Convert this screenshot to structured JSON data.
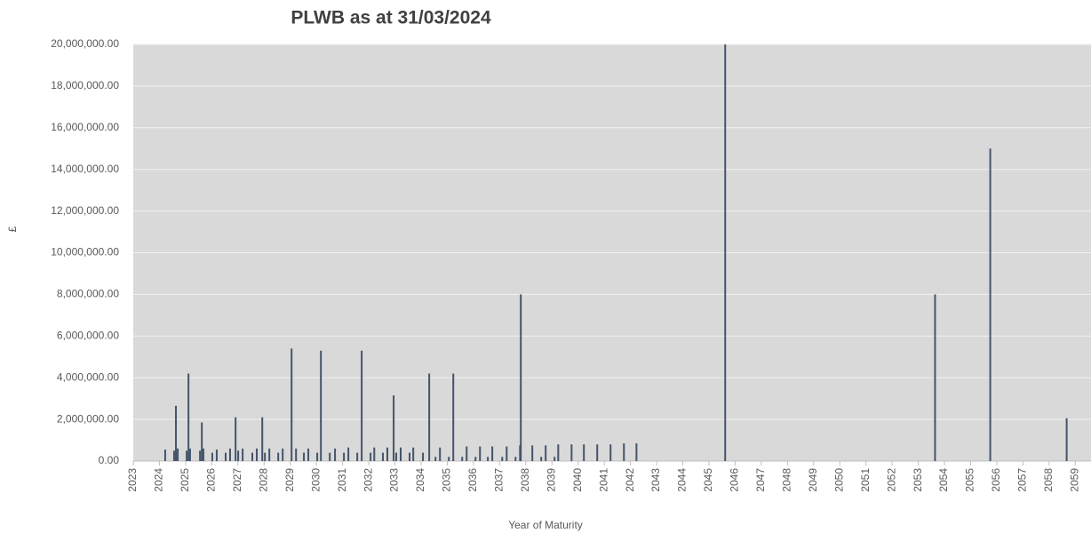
{
  "chart_data": {
    "type": "bar",
    "title": "PLWB as at 31/03/2024",
    "x_label": "Year of Maturity",
    "y_label": "£",
    "color": "#44546a",
    "background": "#d9d9d9",
    "grid": true,
    "x": [
      2024.22,
      2024.56,
      2024.63,
      2024.7,
      2025.04,
      2025.11,
      2025.17,
      2025.55,
      2025.62,
      2025.68,
      2026.02,
      2026.19,
      2026.53,
      2026.7,
      2026.91,
      2027.01,
      2027.18,
      2027.55,
      2027.72,
      2027.93,
      2028.03,
      2028.2,
      2028.54,
      2028.71,
      2029.05,
      2029.22,
      2029.52,
      2029.69,
      2030.03,
      2030.17,
      2030.51,
      2030.71,
      2031.05,
      2031.22,
      2031.56,
      2031.73,
      2032.07,
      2032.21,
      2032.54,
      2032.71,
      2032.95,
      2033.05,
      2033.22,
      2033.56,
      2033.7,
      2034.07,
      2034.31,
      2034.55,
      2034.72,
      2035.06,
      2035.23,
      2035.57,
      2035.74,
      2036.08,
      2036.25,
      2036.55,
      2036.72,
      2037.1,
      2037.27,
      2037.61,
      2037.78,
      2037.81,
      2038.25,
      2038.59,
      2038.76,
      2039.1,
      2039.24,
      2039.75,
      2040.22,
      2040.73,
      2041.24,
      2041.75,
      2042.23,
      2045.62,
      2053.64,
      2055.75,
      2058.67
    ],
    "values": [
      550000,
      500000,
      2650000,
      600000,
      500000,
      4200000,
      600000,
      500000,
      1850000,
      600000,
      400000,
      550000,
      400000,
      600000,
      2100000,
      500000,
      600000,
      400000,
      600000,
      2100000,
      400000,
      600000,
      400000,
      600000,
      5400000,
      600000,
      400000,
      600000,
      400000,
      5300000,
      400000,
      600000,
      400000,
      650000,
      400000,
      5300000,
      400000,
      650000,
      400000,
      650000,
      3150000,
      400000,
      650000,
      400000,
      650000,
      400000,
      4200000,
      200000,
      650000,
      200000,
      4200000,
      200000,
      700000,
      200000,
      700000,
      200000,
      700000,
      200000,
      700000,
      200000,
      750000,
      8000000,
      750000,
      200000,
      750000,
      200000,
      800000,
      800000,
      800000,
      800000,
      800000,
      850000,
      850000,
      20000000,
      8000000,
      15000000,
      2050000
    ],
    "xlim": [
      2023,
      2059.6
    ],
    "xticks": [
      2023,
      2024,
      2025,
      2026,
      2027,
      2028,
      2029,
      2030,
      2031,
      2032,
      2033,
      2034,
      2035,
      2036,
      2037,
      2038,
      2039,
      2040,
      2041,
      2042,
      2043,
      2044,
      2045,
      2046,
      2047,
      2048,
      2049,
      2050,
      2051,
      2052,
      2053,
      2054,
      2055,
      2056,
      2057,
      2058,
      2059
    ],
    "ylim": [
      0,
      20000000
    ],
    "yticks": [
      {
        "value": 0,
        "label": "0.00"
      },
      {
        "value": 2000000,
        "label": "2,000,000.00"
      },
      {
        "value": 4000000,
        "label": "4,000,000.00"
      },
      {
        "value": 6000000,
        "label": "6,000,000.00"
      },
      {
        "value": 8000000,
        "label": "8,000,000.00"
      },
      {
        "value": 10000000,
        "label": "10,000,000.00"
      },
      {
        "value": 12000000,
        "label": "12,000,000.00"
      },
      {
        "value": 14000000,
        "label": "14,000,000.00"
      },
      {
        "value": 16000000,
        "label": "16,000,000.00"
      },
      {
        "value": 18000000,
        "label": "18,000,000.00"
      },
      {
        "value": 20000000,
        "label": "20,000,000.00"
      }
    ]
  }
}
